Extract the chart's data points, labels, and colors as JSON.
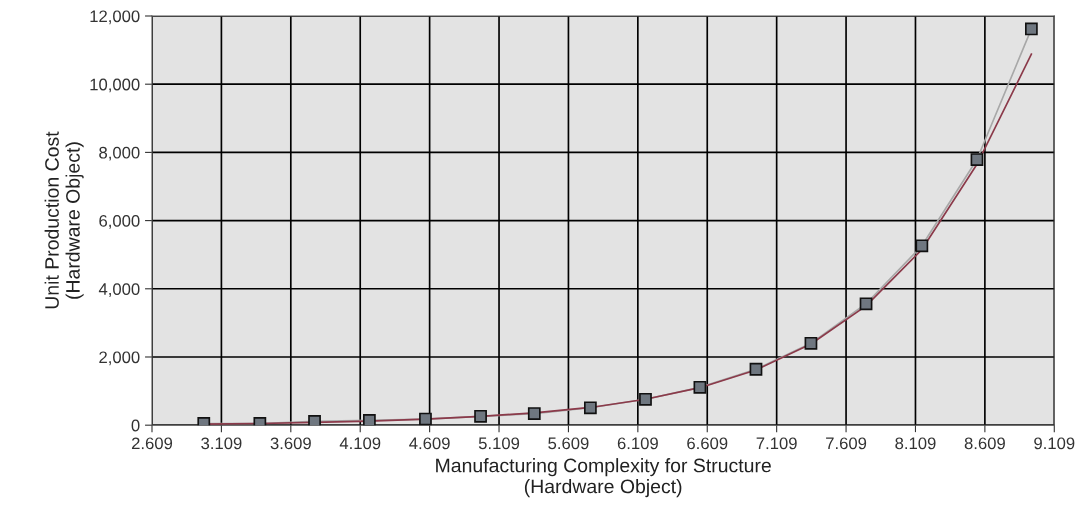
{
  "chart_data": {
    "type": "line",
    "xlabel": "Manufacturing Complexity for Structure\n(Hardware Object)",
    "ylabel": "Unit Production Cost\n(Hardware Object)",
    "series": [
      {
        "color": "#a8a8a8",
        "marker": "square",
        "x": [
          2.982,
          3.386,
          3.78,
          4.175,
          4.579,
          4.976,
          5.363,
          5.767,
          6.164,
          6.556,
          6.96,
          7.356,
          7.753,
          8.155,
          8.552,
          8.944
        ],
        "values": [
          50,
          50,
          110,
          140,
          180,
          260,
          340,
          510,
          760,
          1110,
          1640,
          2400,
          3560,
          5260,
          7790,
          11620
        ]
      },
      {
        "color": "#8b3a4a",
        "marker": "none",
        "x": [
          2.982,
          3.386,
          3.78,
          4.175,
          4.579,
          4.976,
          5.363,
          5.767,
          6.164,
          6.556,
          6.96,
          7.356,
          7.753,
          8.155,
          8.552,
          8.944
        ],
        "values": [
          30,
          50,
          80,
          120,
          180,
          260,
          360,
          520,
          760,
          1100,
          1620,
          2380,
          3500,
          5150,
          7650,
          10880
        ]
      }
    ],
    "xlim": [
      2.609,
      9.109
    ],
    "xticks": [
      2.609,
      3.109,
      3.609,
      4.109,
      4.609,
      5.109,
      5.609,
      6.109,
      6.609,
      7.109,
      7.609,
      8.109,
      8.609,
      9.109
    ],
    "ylim": [
      0,
      12000
    ],
    "yticks": [
      0,
      {
        "value": 2000,
        "label": "2,000"
      },
      {
        "value": 4000,
        "label": "4,000"
      },
      {
        "value": 6000,
        "label": "6,000"
      },
      {
        "value": 8000,
        "label": "8,000"
      },
      {
        "value": 10000,
        "label": "10,000"
      },
      {
        "value": 12000,
        "label": "12,000"
      }
    ],
    "grid": true,
    "legend": false
  }
}
